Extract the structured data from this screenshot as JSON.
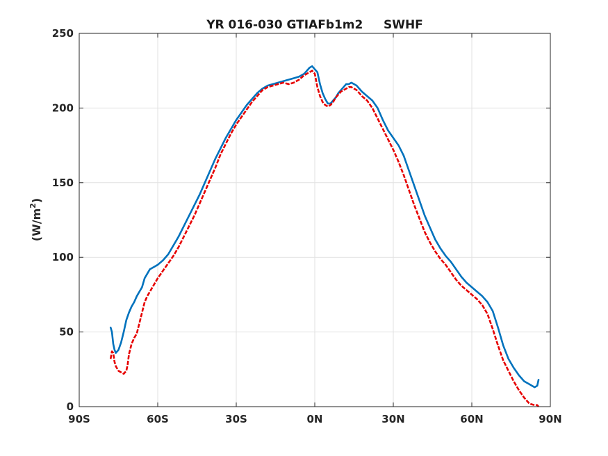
{
  "chart_data": {
    "type": "line",
    "title": "YR 016-030 GTIAFb1m2     SWHF",
    "xlabel": "",
    "ylabel_main": "(W/m",
    "ylabel_sup": "2",
    "ylabel_close": ")",
    "xlim": [
      -90,
      90
    ],
    "ylim": [
      0,
      250
    ],
    "grid": true,
    "xticks": [
      -90,
      -60,
      -30,
      0,
      30,
      60,
      90
    ],
    "xtick_labels": [
      "90S",
      "60S",
      "30S",
      "0N",
      "30N",
      "60N",
      "90N"
    ],
    "yticks": [
      0,
      50,
      100,
      150,
      200,
      250
    ],
    "ytick_labels": [
      "0",
      "50",
      "100",
      "150",
      "200",
      "250"
    ],
    "series": [
      {
        "color": "#0072BD",
        "style": "solid",
        "x": [
          -78,
          -77.5,
          -77,
          -76.5,
          -76,
          -75,
          -74,
          -73,
          -72,
          -71,
          -70,
          -69,
          -68,
          -67,
          -66,
          -65,
          -64,
          -63,
          -62,
          -60,
          -58,
          -56,
          -54,
          -52,
          -50,
          -48,
          -46,
          -44,
          -42,
          -40,
          -38,
          -36,
          -34,
          -32,
          -30,
          -28,
          -26,
          -24,
          -22,
          -20,
          -18,
          -16,
          -14,
          -12,
          -10,
          -8,
          -6,
          -4,
          -2,
          -1,
          0,
          1,
          2,
          3,
          4,
          5,
          6,
          7,
          8,
          9,
          10,
          11,
          12,
          13,
          14,
          15,
          16,
          17,
          18,
          20,
          22,
          24,
          26,
          28,
          30,
          32,
          34,
          36,
          38,
          40,
          42,
          44,
          46,
          48,
          50,
          52,
          54,
          56,
          58,
          60,
          62,
          64,
          66,
          68,
          70,
          72,
          74,
          76,
          78,
          80,
          82,
          84,
          85,
          85.5
        ],
        "y": [
          53,
          50,
          42,
          38,
          36,
          38,
          43,
          50,
          58,
          63,
          67,
          70,
          74,
          77,
          80,
          86,
          89,
          92,
          93,
          95,
          98,
          102,
          108,
          114,
          121,
          128,
          135,
          142,
          150,
          158,
          166,
          173,
          180,
          186,
          192,
          197,
          202,
          206,
          210,
          213,
          215,
          216,
          217,
          218,
          219,
          220,
          221,
          223,
          227,
          228,
          226,
          224,
          216,
          210,
          206,
          203,
          203,
          205,
          207,
          210,
          212,
          214,
          216,
          216,
          217,
          216,
          215,
          213,
          211,
          208,
          205,
          200,
          192,
          185,
          180,
          175,
          168,
          158,
          148,
          138,
          128,
          120,
          112,
          106,
          101,
          97,
          92,
          87,
          83,
          80,
          77,
          74,
          70,
          64,
          53,
          41,
          32,
          26,
          21,
          17,
          15,
          13,
          14,
          18
        ]
      },
      {
        "color": "#E60000",
        "style": "dashed",
        "x": [
          -78,
          -77.5,
          -77,
          -76.5,
          -76,
          -75,
          -74,
          -73,
          -72,
          -71.5,
          -71,
          -70,
          -69,
          -68,
          -67,
          -66,
          -65,
          -64,
          -63,
          -62,
          -60,
          -58,
          -56,
          -54,
          -52,
          -50,
          -48,
          -46,
          -44,
          -42,
          -40,
          -38,
          -36,
          -34,
          -32,
          -30,
          -28,
          -26,
          -24,
          -22,
          -20,
          -18,
          -16,
          -14,
          -12,
          -10,
          -8,
          -6,
          -4,
          -2,
          -1,
          0,
          1,
          2,
          3,
          4,
          5,
          6,
          7,
          8,
          9,
          10,
          11,
          12,
          13,
          14,
          15,
          16,
          17,
          18,
          20,
          22,
          24,
          26,
          28,
          30,
          32,
          34,
          36,
          38,
          40,
          42,
          44,
          46,
          48,
          50,
          52,
          54,
          56,
          58,
          60,
          62,
          64,
          66,
          68,
          70,
          72,
          74,
          76,
          78,
          80,
          82,
          84,
          85,
          85.5
        ],
        "y": [
          32,
          37,
          36,
          30,
          27,
          24,
          23,
          22,
          24,
          28,
          35,
          42,
          46,
          49,
          56,
          63,
          70,
          74,
          77,
          80,
          86,
          91,
          96,
          101,
          107,
          114,
          121,
          128,
          136,
          144,
          152,
          160,
          169,
          176,
          183,
          189,
          194,
          199,
          204,
          208,
          212,
          214,
          215,
          216,
          217,
          216,
          217,
          219,
          222,
          224,
          225,
          223,
          214,
          208,
          204,
          202,
          201,
          202,
          204,
          207,
          209,
          211,
          212,
          213,
          214,
          214,
          213,
          212,
          210,
          208,
          205,
          200,
          193,
          186,
          179,
          172,
          164,
          155,
          145,
          135,
          126,
          117,
          110,
          104,
          99,
          95,
          90,
          85,
          81,
          78,
          75,
          72,
          68,
          62,
          52,
          41,
          31,
          24,
          17,
          11,
          6,
          2,
          1,
          1,
          0
        ]
      }
    ]
  }
}
